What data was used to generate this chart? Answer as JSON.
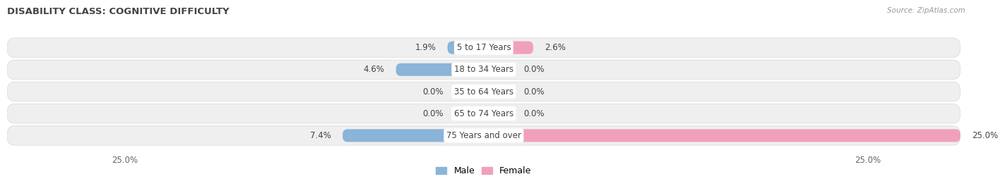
{
  "title": "DISABILITY CLASS: COGNITIVE DIFFICULTY",
  "source": "Source: ZipAtlas.com",
  "categories": [
    "5 to 17 Years",
    "18 to 34 Years",
    "35 to 64 Years",
    "65 to 74 Years",
    "75 Years and over"
  ],
  "male_values": [
    1.9,
    4.6,
    0.0,
    0.0,
    7.4
  ],
  "female_values": [
    2.6,
    0.0,
    0.0,
    0.0,
    25.0
  ],
  "x_max": 25.0,
  "male_color": "#8ab4d8",
  "female_color": "#f0a0bc",
  "male_color_light": "#b8d0e8",
  "female_color_light": "#f5c0d2",
  "row_bg_color": "#efefef",
  "row_border_color": "#d8d8d8",
  "label_color": "#444444",
  "title_color": "#444444",
  "axis_label_color": "#666666",
  "min_bar_stub": 1.5,
  "label_fontsize": 8.5,
  "title_fontsize": 9.5
}
